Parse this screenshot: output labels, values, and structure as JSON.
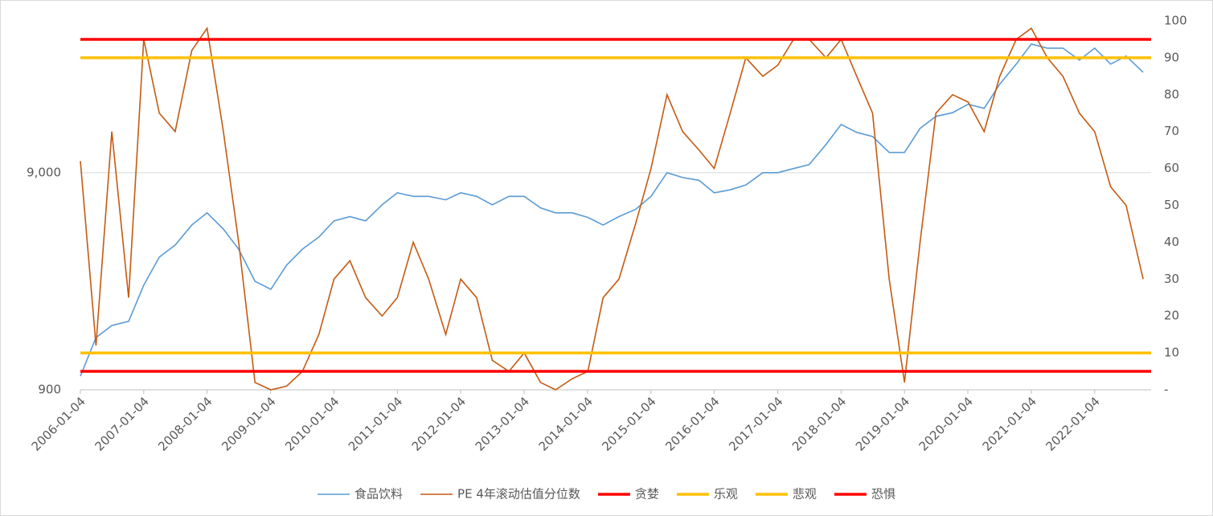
{
  "chart_data": {
    "type": "line",
    "ylog": true,
    "grid": true,
    "legend": "bottom",
    "xlim": [
      "2006-01-04",
      "2022-11-25"
    ],
    "xticks": [
      "2006-01-04",
      "2007-01-04",
      "2008-01-04",
      "2009-01-04",
      "2010-01-04",
      "2011-01-04",
      "2012-01-04",
      "2013-01-04",
      "2014-01-04",
      "2015-01-04",
      "2016-01-04",
      "2017-01-04",
      "2018-01-04",
      "2019-01-04",
      "2020-01-04",
      "2021-01-04",
      "2022-01-04"
    ],
    "ylim": [
      900,
      45000
    ],
    "yticks": [
      900,
      {
        "value": 9000,
        "label": "9,000"
      }
    ],
    "y2lim": [
      0,
      100
    ],
    "y2ticks": [
      {
        "value": 0,
        "label": "-"
      },
      10,
      20,
      30,
      40,
      50,
      60,
      70,
      80,
      90,
      100
    ],
    "x": [
      "2006-01-04",
      "2006-04-04",
      "2006-07-04",
      "2006-10-09",
      "2007-01-04",
      "2007-04-04",
      "2007-07-04",
      "2007-10-08",
      "2008-01-04",
      "2008-04-07",
      "2008-07-04",
      "2008-10-06",
      "2009-01-05",
      "2009-04-06",
      "2009-07-06",
      "2009-10-09",
      "2010-01-04",
      "2010-04-06",
      "2010-07-05",
      "2010-10-08",
      "2011-01-04",
      "2011-04-06",
      "2011-07-04",
      "2011-10-10",
      "2012-01-04",
      "2012-04-05",
      "2012-07-04",
      "2012-10-08",
      "2013-01-04",
      "2013-04-08",
      "2013-07-04",
      "2013-10-08",
      "2014-01-06",
      "2014-04-04",
      "2014-07-04",
      "2014-10-08",
      "2015-01-05",
      "2015-04-07",
      "2015-07-06",
      "2015-10-08",
      "2016-01-04",
      "2016-04-05",
      "2016-07-04",
      "2016-10-10",
      "2017-01-04",
      "2017-04-05",
      "2017-07-04",
      "2017-10-09",
      "2018-01-04",
      "2018-04-04",
      "2018-07-04",
      "2018-10-08",
      "2019-01-04",
      "2019-04-04",
      "2019-07-04",
      "2019-10-08",
      "2020-01-06",
      "2020-04-07",
      "2020-07-06",
      "2020-10-09",
      "2021-01-04",
      "2021-04-06",
      "2021-07-05",
      "2021-10-08",
      "2022-01-04",
      "2022-04-06",
      "2022-07-04",
      "2022-10-10"
    ],
    "series": [
      {
        "name": "食品饮料",
        "color": "#5b9bd5",
        "axis": "y",
        "values": [
          1040,
          1566,
          1780,
          1860,
          2727,
          3675,
          4177,
          5166,
          5877,
          4950,
          4000,
          2846,
          2612,
          3375,
          4000,
          4550,
          5400,
          5650,
          5400,
          6400,
          7270,
          7000,
          7000,
          6750,
          7270,
          7000,
          6400,
          7000,
          7000,
          6200,
          5877,
          5877,
          5600,
          5166,
          5650,
          6100,
          7000,
          9000,
          8550,
          8300,
          7270,
          7500,
          7900,
          9000,
          9000,
          9400,
          9800,
          12140,
          15000,
          13800,
          13200,
          11150,
          11150,
          14400,
          16350,
          17000,
          18600,
          17800,
          23000,
          28460,
          35200,
          33700,
          33700,
          29700,
          33700,
          28460,
          31000,
          26100
        ]
      },
      {
        "name": "PE 4年滚动估值分位数",
        "color": "#c55a11",
        "axis": "y2",
        "values": [
          62,
          12,
          70,
          25,
          95,
          75,
          70,
          92,
          98,
          70,
          40,
          2,
          0,
          1,
          5,
          15,
          30,
          35,
          25,
          20,
          25,
          40,
          30,
          15,
          30,
          25,
          8,
          5,
          10,
          2,
          0,
          3,
          5,
          25,
          30,
          45,
          60,
          80,
          70,
          65,
          60,
          75,
          90,
          85,
          88,
          95,
          95,
          90,
          95,
          85,
          75,
          30,
          2,
          40,
          75,
          80,
          78,
          70,
          85,
          95,
          98,
          90,
          85,
          75,
          70,
          55,
          50,
          30
        ]
      }
    ],
    "reference_lines": [
      {
        "name": "贪婪",
        "value": 95,
        "color": "#ff0000",
        "axis": "y2"
      },
      {
        "name": "乐观",
        "value": 90,
        "color": "#ffc000",
        "axis": "y2"
      },
      {
        "name": "悲观",
        "value": 10,
        "color": "#ffc000",
        "axis": "y2"
      },
      {
        "name": "恐惧",
        "value": 5,
        "color": "#ff0000",
        "axis": "y2"
      }
    ]
  }
}
